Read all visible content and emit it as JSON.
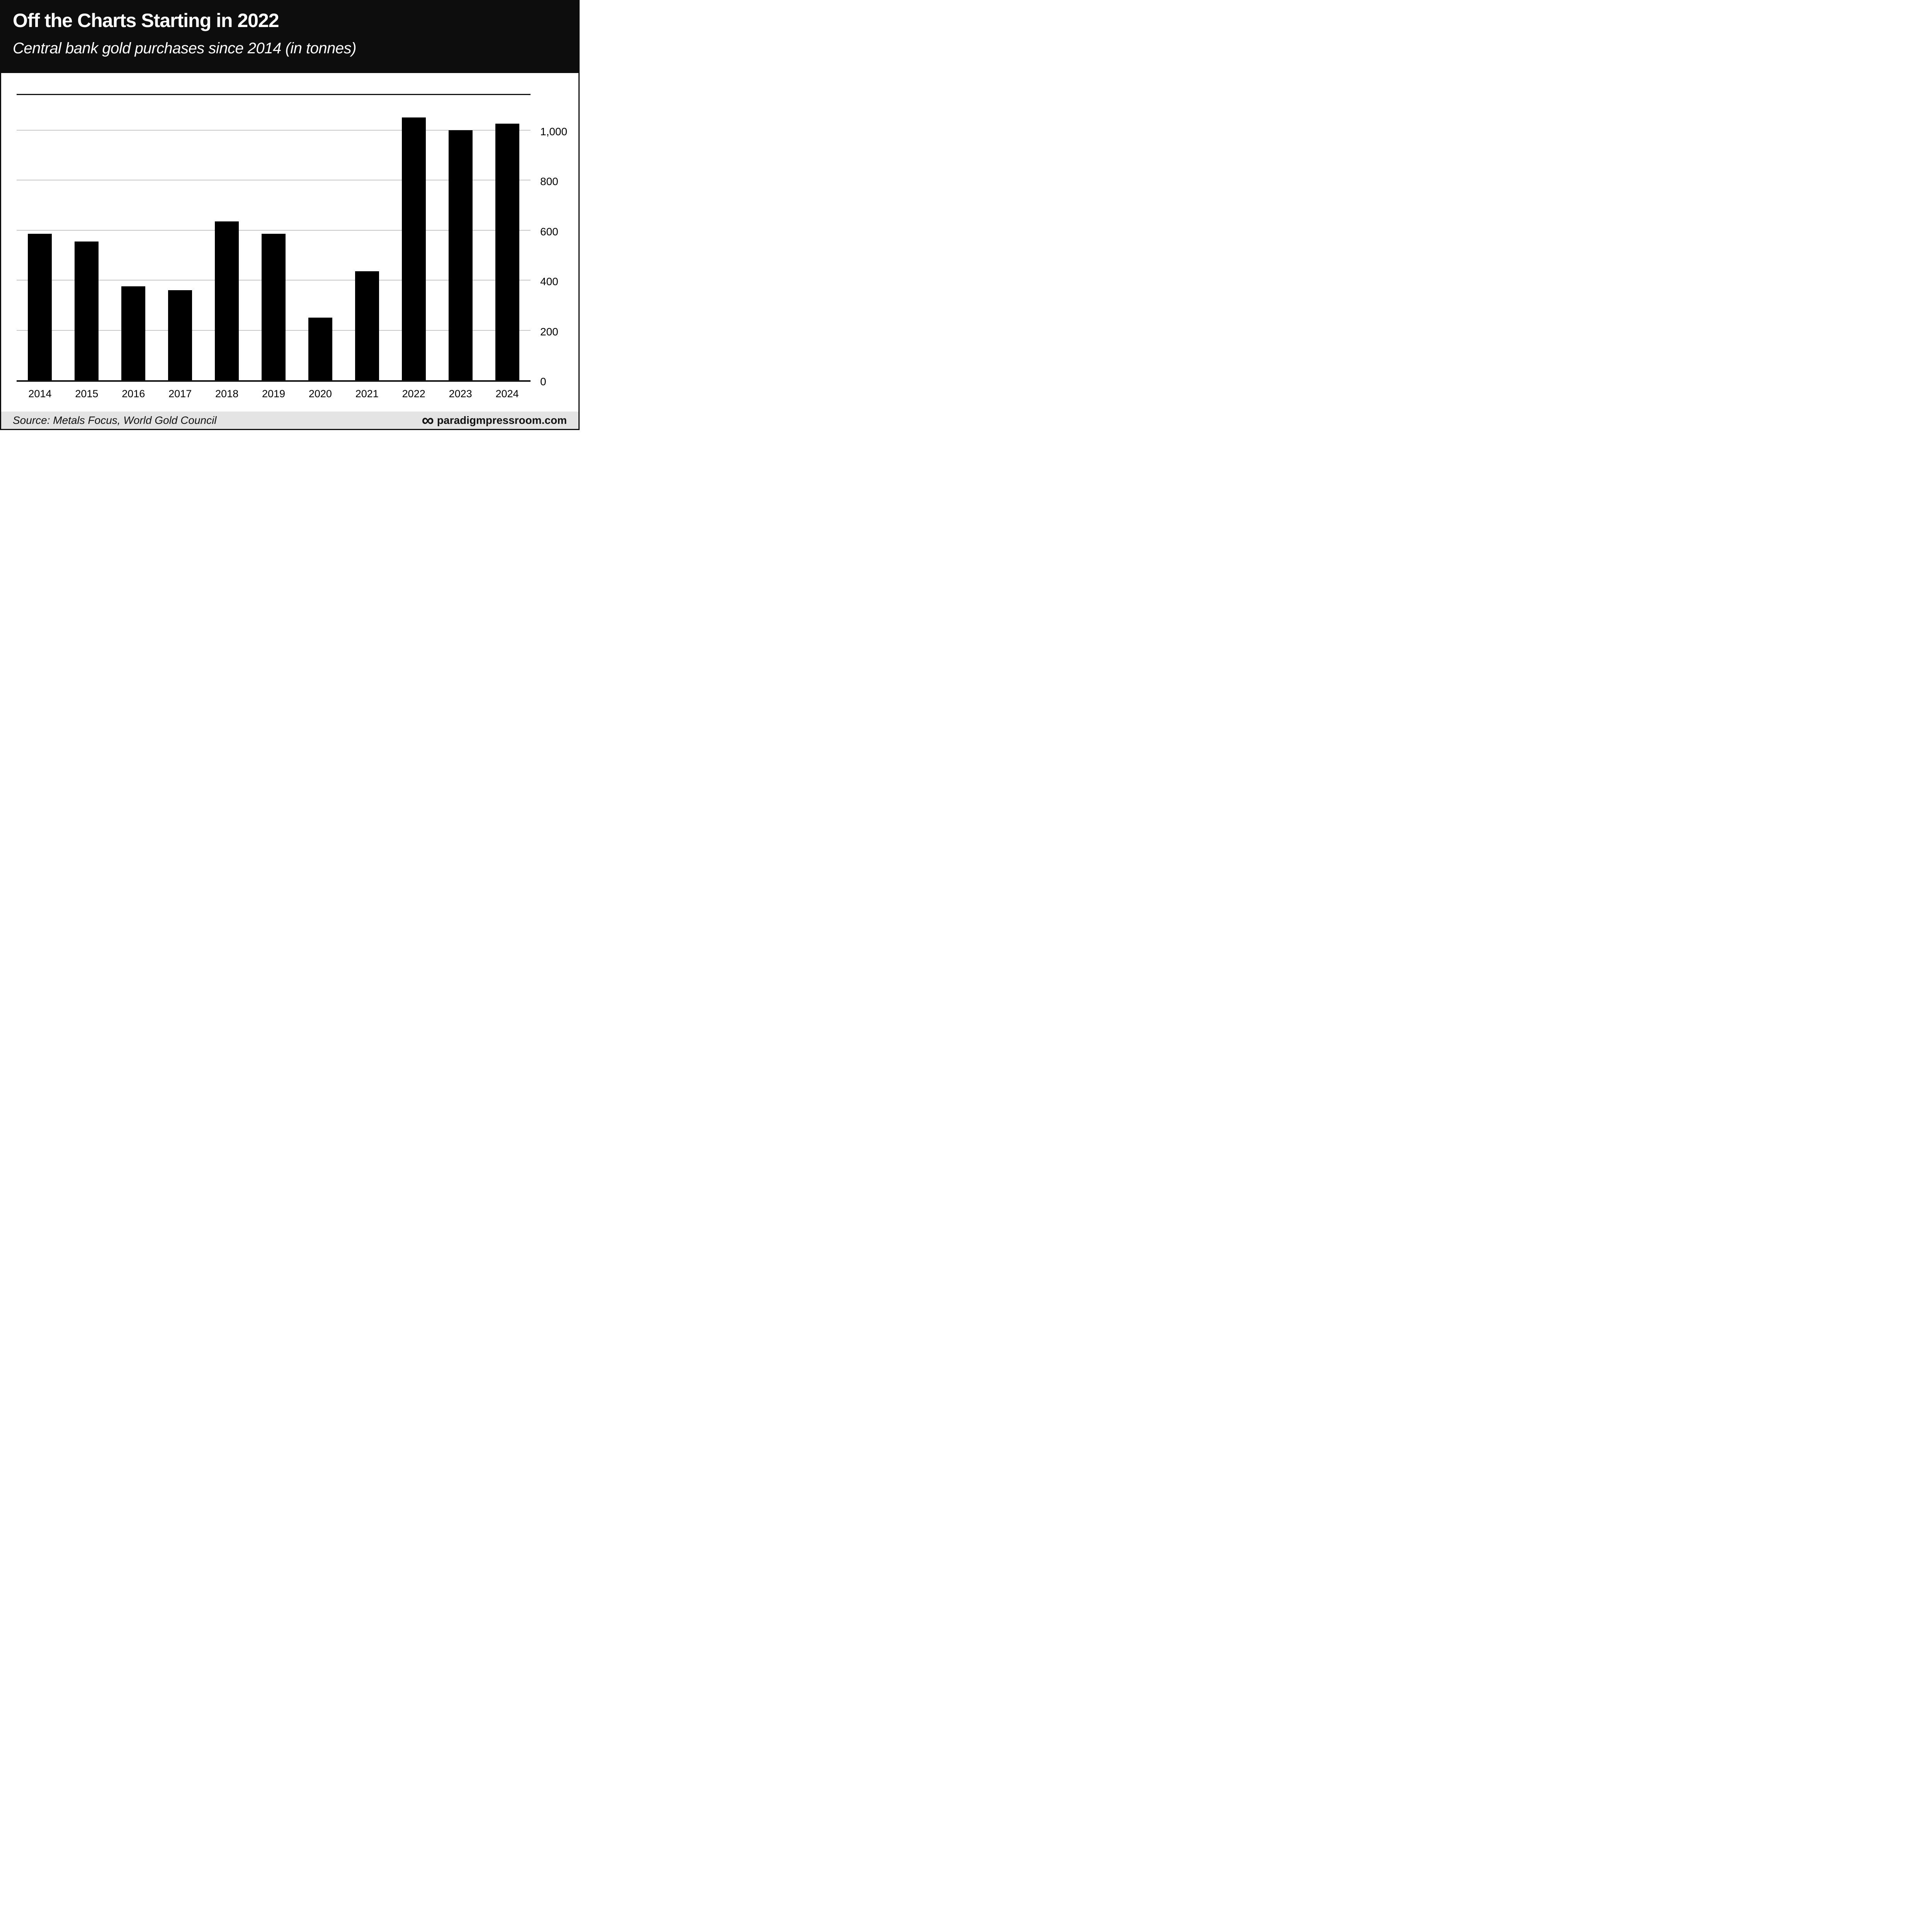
{
  "header": {
    "title": "Off the Charts Starting in 2022",
    "subtitle": "Central bank gold purchases since 2014 (in tonnes)"
  },
  "chart_data": {
    "type": "bar",
    "title": "Off the Charts Starting in 2022",
    "subtitle": "Central bank gold purchases since 2014 (in tonnes)",
    "categories": [
      "2014",
      "2015",
      "2016",
      "2017",
      "2018",
      "2019",
      "2020",
      "2021",
      "2022",
      "2023",
      "2024"
    ],
    "values": [
      585,
      555,
      375,
      360,
      635,
      585,
      250,
      435,
      1050,
      1000,
      1025
    ],
    "unit": "tonnes",
    "xlabel": "",
    "ylabel": "",
    "ylim": [
      0,
      1140
    ],
    "yticks": [
      {
        "value": 0,
        "label": "0"
      },
      {
        "value": 200,
        "label": "200"
      },
      {
        "value": 400,
        "label": "400"
      },
      {
        "value": 600,
        "label": "600"
      },
      {
        "value": 800,
        "label": "800"
      },
      {
        "value": 1000,
        "label": "1,000"
      }
    ],
    "grid": true,
    "legend": false,
    "axis_side": "right",
    "bar_color": "#000000",
    "gridline_color": "#c6c6c6"
  },
  "footer": {
    "source": "Source: Metals Focus, World Gold Council",
    "logo_icon": "infinity-icon",
    "logo_glyph": "∞",
    "website": "paradigmpressroom.com"
  },
  "colors": {
    "header_bg": "#0d0d0d",
    "chart_bg": "#ffffff",
    "footer_bg": "#e4e4e4",
    "bar": "#000000",
    "gridline": "#c6c6c6",
    "axis_line": "#111111"
  }
}
